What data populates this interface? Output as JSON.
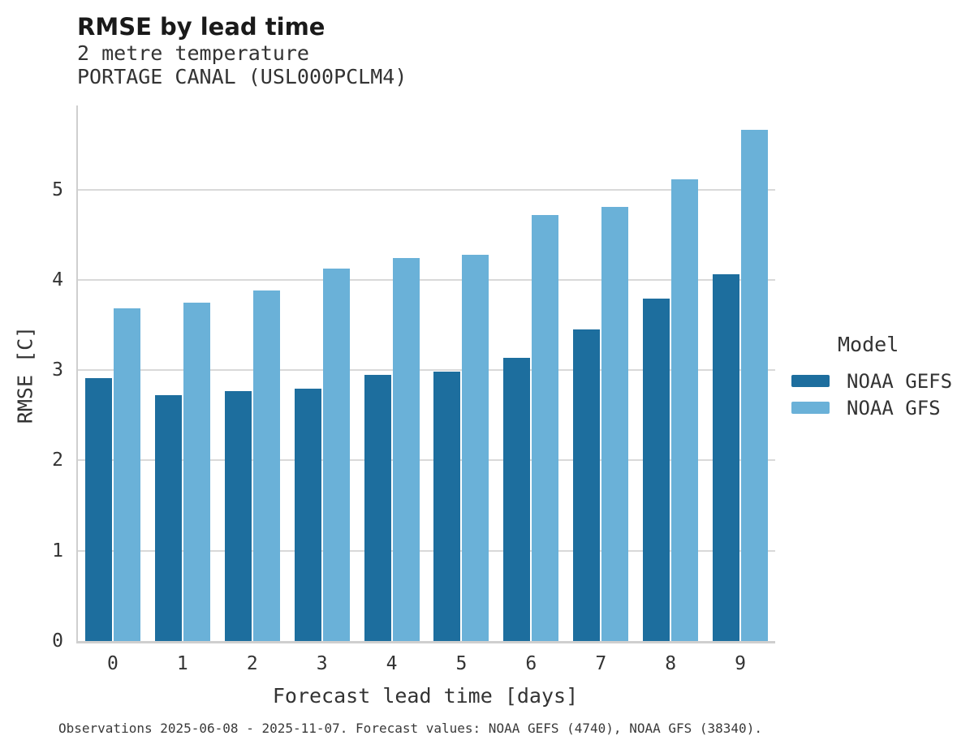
{
  "title": "RMSE by lead time",
  "subtitle_lines": [
    "2 metre temperature",
    "PORTAGE CANAL (USL000PCLM4)"
  ],
  "caption": "Observations 2025-06-08 - 2025-11-07. Forecast values: NOAA GEFS (4740), NOAA GFS (38340).",
  "legend": {
    "title": "Model",
    "entries": [
      {
        "label": "NOAA GEFS",
        "color": "#1d6e9e"
      },
      {
        "label": "NOAA GFS",
        "color": "#6ab1d8"
      }
    ]
  },
  "colors": {
    "gefs_bar": "#1d6e9e",
    "gfs_bar": "#6ab1d8",
    "gridline": "#d9d9d9",
    "spine": "#cfcfcf",
    "title_text": "#1a1a1a",
    "body_text": "#333333"
  },
  "chart_data": {
    "type": "bar",
    "categories": [
      "0",
      "1",
      "2",
      "3",
      "4",
      "5",
      "6",
      "7",
      "8",
      "9"
    ],
    "series": [
      {
        "name": "NOAA GEFS",
        "color": "#1d6e9e",
        "values": [
          2.91,
          2.72,
          2.77,
          2.79,
          2.95,
          2.98,
          3.14,
          3.45,
          3.79,
          4.06
        ]
      },
      {
        "name": "NOAA GFS",
        "color": "#6ab1d8",
        "values": [
          3.68,
          3.75,
          3.88,
          4.12,
          4.24,
          4.28,
          4.72,
          4.81,
          5.11,
          5.66
        ]
      }
    ],
    "title": "RMSE by lead time",
    "subtitle": "2 metre temperature — PORTAGE CANAL (USL000PCLM4)",
    "xlabel": "Forecast lead time [days]",
    "ylabel": "RMSE [C]",
    "ylim": [
      0,
      5.93
    ],
    "yticks": [
      0,
      1,
      2,
      3,
      4,
      5
    ],
    "grid": true,
    "legend_title": "Model",
    "legend_position": "center-right"
  }
}
